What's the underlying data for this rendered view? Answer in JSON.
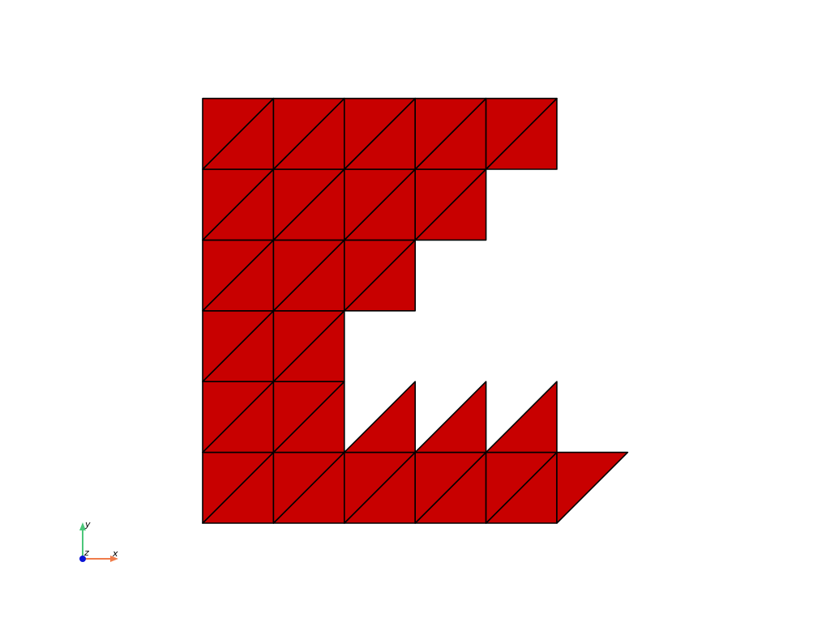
{
  "mesh": {
    "fill_color": "#c80000",
    "edge_color": "#000000",
    "cells": [
      {
        "col": 0,
        "row": 0,
        "tris": [
          "lower",
          "upper"
        ]
      },
      {
        "col": 1,
        "row": 0,
        "tris": [
          "lower",
          "upper"
        ]
      },
      {
        "col": 2,
        "row": 0,
        "tris": [
          "lower",
          "upper"
        ]
      },
      {
        "col": 3,
        "row": 0,
        "tris": [
          "lower",
          "upper"
        ]
      },
      {
        "col": 4,
        "row": 0,
        "tris": [
          "lower",
          "upper"
        ]
      },
      {
        "col": 5,
        "row": 0,
        "tris": [
          "upper"
        ]
      },
      {
        "col": 0,
        "row": 1,
        "tris": [
          "lower",
          "upper"
        ]
      },
      {
        "col": 1,
        "row": 1,
        "tris": [
          "lower",
          "upper"
        ]
      },
      {
        "col": 2,
        "row": 1,
        "tris": [
          "lower"
        ]
      },
      {
        "col": 3,
        "row": 1,
        "tris": [
          "lower"
        ]
      },
      {
        "col": 4,
        "row": 1,
        "tris": [
          "lower"
        ]
      },
      {
        "col": 0,
        "row": 2,
        "tris": [
          "lower",
          "upper"
        ]
      },
      {
        "col": 1,
        "row": 2,
        "tris": [
          "lower",
          "upper"
        ]
      },
      {
        "col": 0,
        "row": 3,
        "tris": [
          "lower",
          "upper"
        ]
      },
      {
        "col": 1,
        "row": 3,
        "tris": [
          "lower",
          "upper"
        ]
      },
      {
        "col": 2,
        "row": 3,
        "tris": [
          "lower",
          "upper"
        ]
      },
      {
        "col": 0,
        "row": 4,
        "tris": [
          "lower",
          "upper"
        ]
      },
      {
        "col": 1,
        "row": 4,
        "tris": [
          "lower",
          "upper"
        ]
      },
      {
        "col": 2,
        "row": 4,
        "tris": [
          "lower",
          "upper"
        ]
      },
      {
        "col": 3,
        "row": 4,
        "tris": [
          "lower",
          "upper"
        ]
      },
      {
        "col": 0,
        "row": 5,
        "tris": [
          "lower",
          "upper"
        ]
      },
      {
        "col": 1,
        "row": 5,
        "tris": [
          "lower",
          "upper"
        ]
      },
      {
        "col": 2,
        "row": 5,
        "tris": [
          "lower",
          "upper"
        ]
      },
      {
        "col": 3,
        "row": 5,
        "tris": [
          "lower",
          "upper"
        ]
      },
      {
        "col": 4,
        "row": 5,
        "tris": [
          "lower",
          "upper"
        ]
      }
    ]
  },
  "axes_widget": {
    "x_label": "x",
    "y_label": "y",
    "z_label": "z",
    "x_color": "#f07c4a",
    "y_color": "#4cc77a",
    "z_color": "#0a14d6"
  }
}
